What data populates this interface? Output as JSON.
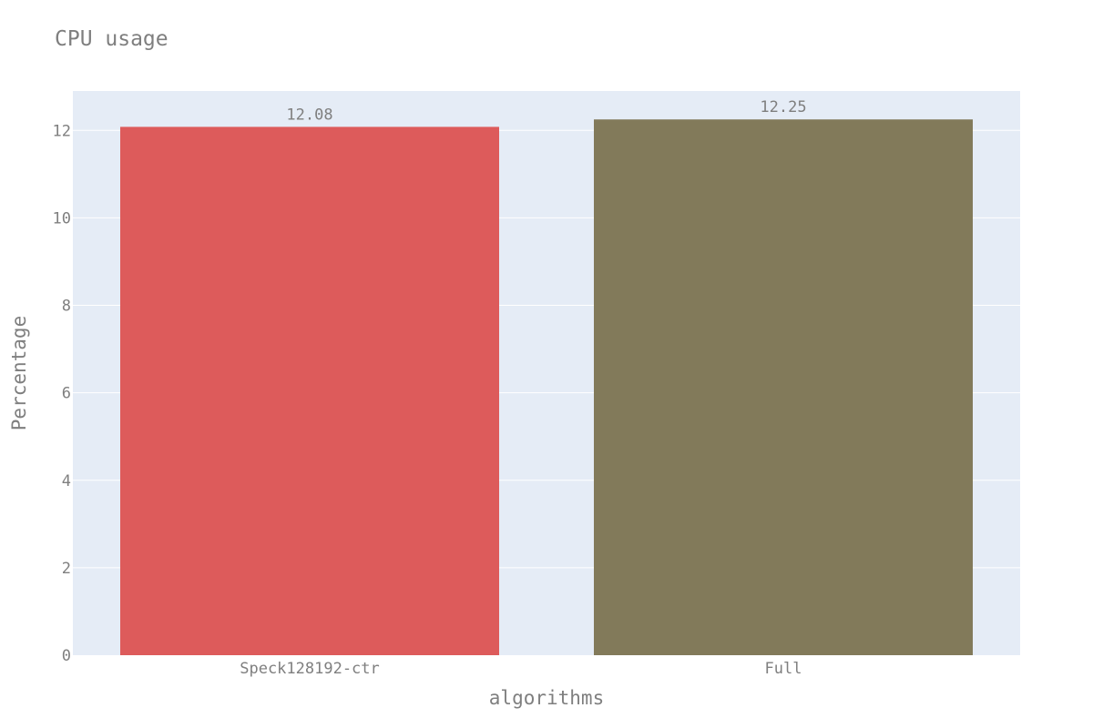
{
  "chart_data": {
    "type": "bar",
    "title": "CPU usage",
    "xlabel": "algorithms",
    "ylabel": "Percentage",
    "categories": [
      "Speck128192-ctr",
      "Full"
    ],
    "values": [
      12.08,
      12.25
    ],
    "value_labels": [
      "12.08",
      "12.25"
    ],
    "bar_colors": [
      "#dd5b5b",
      "#827a5a"
    ],
    "ylim": [
      0,
      12.9
    ],
    "yticks": [
      0,
      2,
      4,
      6,
      8,
      10,
      12
    ],
    "ytick_labels": [
      "0",
      "2",
      "4",
      "6",
      "8",
      "10",
      "12"
    ],
    "grid": true,
    "plot_background": "#e5ecf6",
    "legend": "none"
  }
}
